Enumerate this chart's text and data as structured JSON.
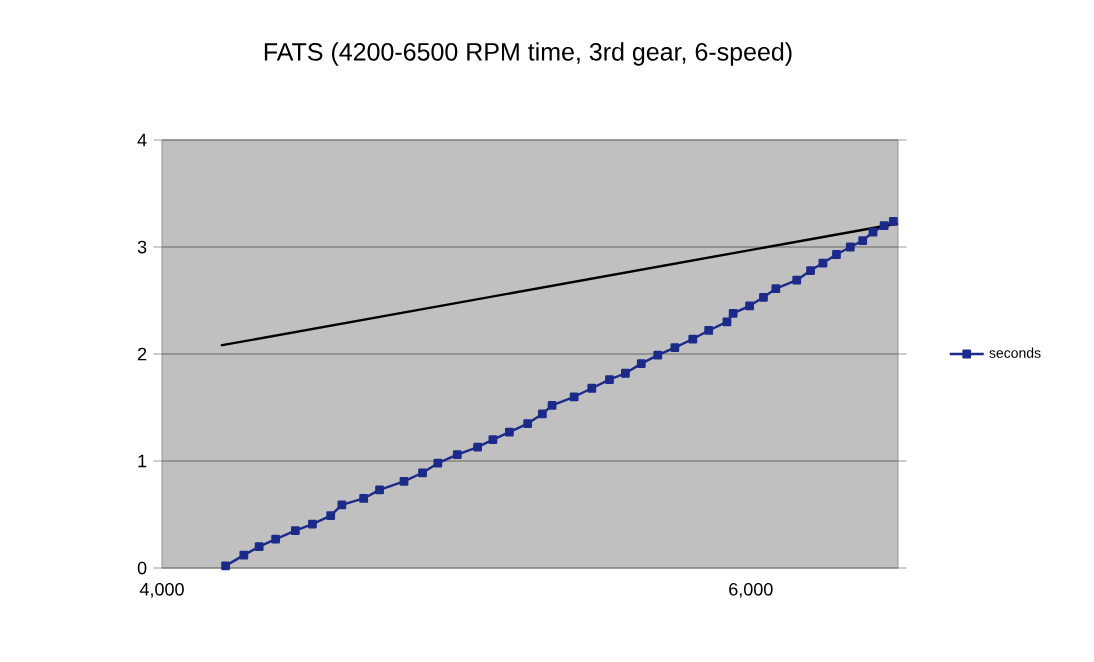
{
  "chart_data": {
    "type": "line",
    "title": "FATS (4200-6500 RPM time, 3rd gear, 6-speed)",
    "xlim": [
      4000,
      6500
    ],
    "xticks": [
      {
        "value": 4000,
        "label": "4,000"
      },
      {
        "value": 6000,
        "label": "6,000"
      }
    ],
    "ylim": [
      0,
      4
    ],
    "yticks": [
      0,
      1,
      2,
      3,
      4
    ],
    "grid": "y",
    "legend": "right",
    "marker": "square",
    "series": [
      {
        "name": "seconds",
        "color": "#1c2a8a",
        "x": [
          4216,
          4278,
          4330,
          4386,
          4453,
          4511,
          4573,
          4611,
          4685,
          4739,
          4822,
          4885,
          4937,
          5003,
          5072,
          5124,
          5180,
          5242,
          5292,
          5325,
          5400,
          5460,
          5520,
          5574,
          5628,
          5684,
          5742,
          5803,
          5857,
          5919,
          5940,
          5996,
          6043,
          6085,
          6156,
          6203,
          6245,
          6291,
          6338,
          6380,
          6415,
          6453,
          6484
        ],
        "values": [
          0.02,
          0.12,
          0.2,
          0.27,
          0.35,
          0.41,
          0.49,
          0.59,
          0.65,
          0.73,
          0.81,
          0.89,
          0.98,
          1.06,
          1.13,
          1.2,
          1.27,
          1.35,
          1.44,
          1.52,
          1.6,
          1.68,
          1.76,
          1.82,
          1.91,
          1.99,
          2.06,
          2.14,
          2.22,
          2.3,
          2.38,
          2.45,
          2.53,
          2.61,
          2.69,
          2.78,
          2.85,
          2.93,
          3.0,
          3.06,
          3.14,
          3.2,
          3.24
        ]
      },
      {
        "color": "#000000",
        "marker": "none",
        "x": [
          4200,
          6500
        ],
        "values": [
          2.08,
          3.22
        ]
      }
    ]
  }
}
